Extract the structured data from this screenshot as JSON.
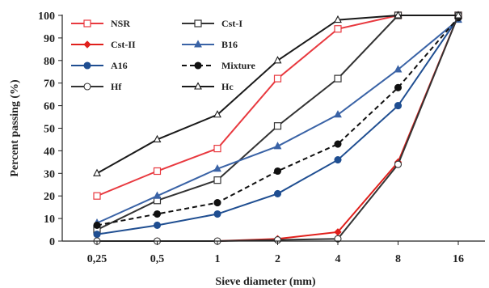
{
  "chart_data": {
    "type": "line",
    "xlabel": "Sieve diameter (mm)",
    "ylabel": "Percent passing (%)",
    "categories": [
      "0,25",
      "0,5",
      "1",
      "2",
      "4",
      "8",
      "16"
    ],
    "ylim": [
      0,
      100
    ],
    "yticks": [
      "0",
      "10",
      "20",
      "30",
      "40",
      "50",
      "60",
      "70",
      "80",
      "90",
      "100"
    ],
    "grid": false,
    "legend_position": "top-left",
    "series": [
      {
        "name": "NSR",
        "color": "#e8393f",
        "marker": "square-open",
        "dashed": false,
        "values": [
          20,
          31,
          41,
          72,
          94,
          100,
          100
        ]
      },
      {
        "name": "Cst-I",
        "color": "#333333",
        "marker": "square-open",
        "dashed": false,
        "values": [
          5,
          18,
          27,
          51,
          72,
          100,
          100
        ]
      },
      {
        "name": "Cst-II",
        "color": "#e0201c",
        "marker": "diamond",
        "dashed": false,
        "values": [
          0,
          0,
          0,
          1,
          4,
          35,
          100
        ]
      },
      {
        "name": "B16",
        "color": "#3a63a6",
        "marker": "triangle",
        "dashed": false,
        "values": [
          8,
          20,
          32,
          42,
          56,
          76,
          98
        ]
      },
      {
        "name": "A16",
        "color": "#1f4e91",
        "marker": "circle",
        "dashed": false,
        "values": [
          3,
          7,
          12,
          21,
          36,
          60,
          99
        ]
      },
      {
        "name": "Mixture",
        "color": "#111111",
        "marker": "circle",
        "dashed": true,
        "values": [
          7,
          12,
          17,
          31,
          43,
          68,
          99
        ]
      },
      {
        "name": "Hf",
        "color": "#333333",
        "marker": "circle-open",
        "dashed": false,
        "values": [
          0,
          0,
          0,
          0.5,
          1,
          34,
          100
        ]
      },
      {
        "name": "Hc",
        "color": "#1a1a1a",
        "marker": "triangle-open",
        "dashed": false,
        "values": [
          30,
          45,
          56,
          80,
          98,
          100,
          100
        ]
      }
    ]
  }
}
